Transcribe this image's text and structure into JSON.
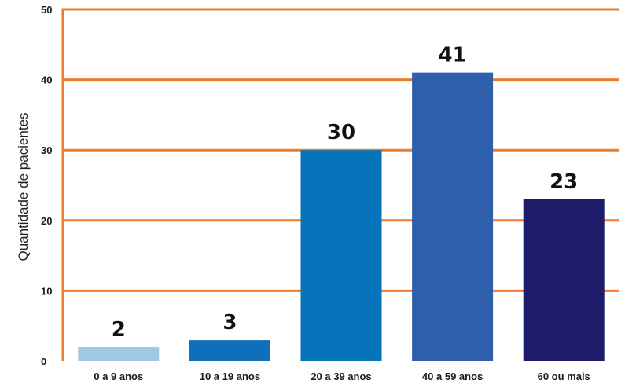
{
  "chart_data": {
    "type": "bar",
    "title": "",
    "xlabel": "",
    "ylabel": "Quantidade de pacientes",
    "categories": [
      "0 a 9 anos",
      "10 a 19 anos",
      "20 a 39 anos",
      "40 a 59 anos",
      "60 ou mais"
    ],
    "values": [
      2,
      3,
      30,
      41,
      23
    ],
    "data_labels": [
      "2",
      "3",
      "30",
      "41",
      "23"
    ],
    "ylim": [
      0,
      50
    ],
    "yticks": [
      0,
      10,
      20,
      30,
      40,
      50
    ],
    "grid": true,
    "legend": "none",
    "colors": {
      "bars": [
        "#9fc8e3",
        "#0e6fbb",
        "#0574ba",
        "#2d5fad",
        "#1c1c6a"
      ],
      "grid": "#ee7d2b"
    }
  }
}
